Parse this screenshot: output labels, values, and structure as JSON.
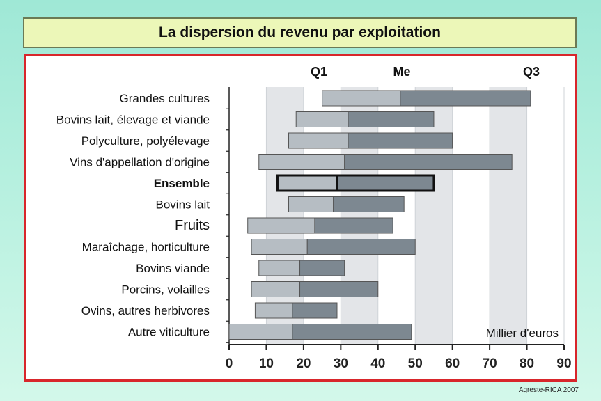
{
  "title": "La dispersion du revenu par exploitation",
  "source": "Agreste-RICA 2007",
  "chart_data": {
    "type": "bar",
    "subtype": "horizontal-range",
    "orientation": "horizontal",
    "unit_label": "Millier d'euros",
    "header_labels": {
      "q1": "Q1",
      "me": "Me",
      "q3": "Q3"
    },
    "xlim": [
      0,
      90
    ],
    "x_ticks": [
      "0",
      "10",
      "20",
      "30",
      "40",
      "50",
      "60",
      "70",
      "80",
      "90"
    ],
    "grid": true,
    "categories": [
      {
        "label": "Grandes cultures",
        "q1": 25,
        "me": 46,
        "q3": 81,
        "highlight": false,
        "style": "normal"
      },
      {
        "label": "Bovins lait, élevage et viande",
        "q1": 18,
        "me": 32,
        "q3": 55,
        "highlight": false,
        "style": "normal"
      },
      {
        "label": "Polyculture, polyélevage",
        "q1": 16,
        "me": 32,
        "q3": 60,
        "highlight": false,
        "style": "normal"
      },
      {
        "label": "Vins d'appellation d'origine",
        "q1": 8,
        "me": 31,
        "q3": 76,
        "highlight": false,
        "style": "normal"
      },
      {
        "label": "Ensemble",
        "q1": 13,
        "me": 29,
        "q3": 55,
        "highlight": true,
        "style": "bold"
      },
      {
        "label": "Bovins lait",
        "q1": 16,
        "me": 28,
        "q3": 47,
        "highlight": false,
        "style": "normal"
      },
      {
        "label": "Fruits",
        "q1": 5,
        "me": 23,
        "q3": 44,
        "highlight": false,
        "style": "large"
      },
      {
        "label": "Maraîchage, horticulture",
        "q1": 6,
        "me": 21,
        "q3": 50,
        "highlight": false,
        "style": "normal"
      },
      {
        "label": "Bovins viande",
        "q1": 8,
        "me": 19,
        "q3": 31,
        "highlight": false,
        "style": "normal"
      },
      {
        "label": "Porcins, volailles",
        "q1": 6,
        "me": 19,
        "q3": 40,
        "highlight": false,
        "style": "normal"
      },
      {
        "label": "Ovins, autres herbivores",
        "q1": 7,
        "me": 17,
        "q3": 29,
        "highlight": false,
        "style": "normal"
      },
      {
        "label": "Autre viticulture",
        "q1": 0,
        "me": 17,
        "q3": 49,
        "highlight": false,
        "style": "normal"
      }
    ],
    "colors": {
      "lower_segment": "#b6bdc3",
      "upper_segment": "#7d8891",
      "grid_band": "#e3e5e8",
      "axis": "#222222"
    }
  }
}
